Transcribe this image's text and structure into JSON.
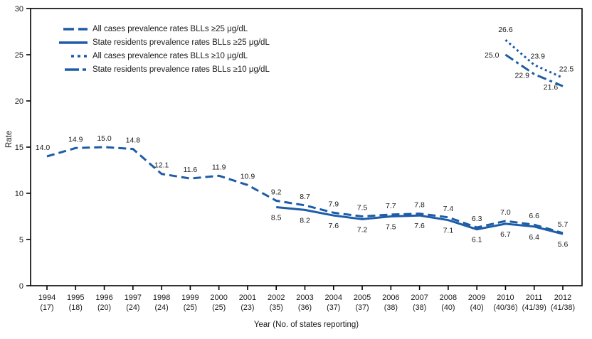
{
  "chart_data": {
    "type": "line",
    "xlabel": "Year (No. of states reporting)",
    "ylabel": "Rate",
    "ylim": [
      0,
      30
    ],
    "yticks": [
      0,
      5,
      10,
      15,
      20,
      25,
      30
    ],
    "grid": false,
    "legend_position": "top-left",
    "line_color": "#1d5ca8",
    "axis_color": "#000000",
    "categories": [
      "1994",
      "1995",
      "1996",
      "1997",
      "1998",
      "1999",
      "2000",
      "2001",
      "2002",
      "2003",
      "2004",
      "2005",
      "2006",
      "2007",
      "2008",
      "2009",
      "2010",
      "2011",
      "2012"
    ],
    "states_reporting": [
      "(17)",
      "(18)",
      "(20)",
      "(24)",
      "(24)",
      "(25)",
      "(25)",
      "(23)",
      "(35)",
      "(36)",
      "(37)",
      "(37)",
      "(38)",
      "(38)",
      "(40)",
      "(40)",
      "(40/36)",
      "(41/39)",
      "(41/38)"
    ],
    "series": [
      {
        "name": "All cases prevalence rates BLLs ≥25 μg/dL",
        "style": "dashed",
        "start_year": "1994",
        "values": [
          14.0,
          14.9,
          15.0,
          14.8,
          12.1,
          11.6,
          11.9,
          10.9,
          9.2,
          8.7,
          7.9,
          7.5,
          7.7,
          7.8,
          7.4,
          6.3,
          7.0,
          6.6,
          5.7
        ]
      },
      {
        "name": "State residents prevalence rates BLLs ≥25 μg/dL",
        "style": "solid",
        "start_year": "2002",
        "values": [
          8.5,
          8.2,
          7.6,
          7.2,
          7.5,
          7.6,
          7.1,
          6.1,
          6.7,
          6.4,
          5.6
        ]
      },
      {
        "name": "All cases prevalence rates BLLs ≥10 μg/dL",
        "style": "dotted",
        "start_year": "2010",
        "values": [
          26.6,
          23.9,
          22.5
        ]
      },
      {
        "name": "State residents prevalence rates BLLs ≥10 μg/dL",
        "style": "dashdot",
        "start_year": "2010",
        "values": [
          25.0,
          22.9,
          21.6
        ]
      }
    ]
  }
}
